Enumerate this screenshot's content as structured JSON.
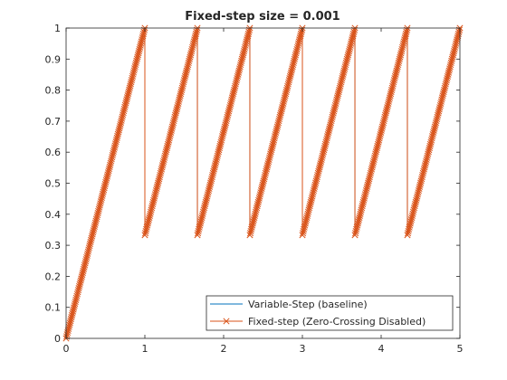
{
  "chart_data": {
    "type": "line",
    "title": "Fixed-step size = 0.001",
    "xlabel": "",
    "ylabel": "",
    "xlim": [
      0,
      5
    ],
    "ylim": [
      0,
      1
    ],
    "x_ticks": [
      0,
      1,
      2,
      3,
      4,
      5
    ],
    "y_ticks": [
      0,
      0.1,
      0.2,
      0.3,
      0.4,
      0.5,
      0.6,
      0.7,
      0.8,
      0.9,
      1
    ],
    "x_tick_labels": [
      "0",
      "1",
      "2",
      "3",
      "4",
      "5"
    ],
    "y_tick_labels": [
      "0",
      "0.1",
      "0.2",
      "0.3",
      "0.4",
      "0.5",
      "0.6",
      "0.7",
      "0.8",
      "0.9",
      "1"
    ],
    "grid": false,
    "legend_location": "bottom-right",
    "series": [
      {
        "name": "Variable-Step (baseline)",
        "color": "#0072BD",
        "marker": "none",
        "x": [
          0,
          1,
          1,
          1.667,
          1.667,
          2.333,
          2.333,
          3,
          3,
          3.667,
          3.667,
          4.333,
          4.333,
          5
        ],
        "y": [
          0,
          1,
          0.333,
          1,
          0.333,
          1,
          0.333,
          1,
          0.333,
          1,
          0.333,
          1,
          0.333,
          1
        ]
      },
      {
        "name": "Fixed-step (Zero-Crossing Disabled)",
        "color": "#D95319",
        "marker": "x",
        "x": [
          0,
          1,
          1,
          1.667,
          1.667,
          2.333,
          2.333,
          3,
          3,
          3.667,
          3.667,
          4.333,
          4.333,
          5
        ],
        "y": [
          0,
          1,
          0.333,
          1,
          0.333,
          1,
          0.333,
          1,
          0.333,
          1,
          0.333,
          1,
          0.333,
          1
        ]
      }
    ]
  }
}
